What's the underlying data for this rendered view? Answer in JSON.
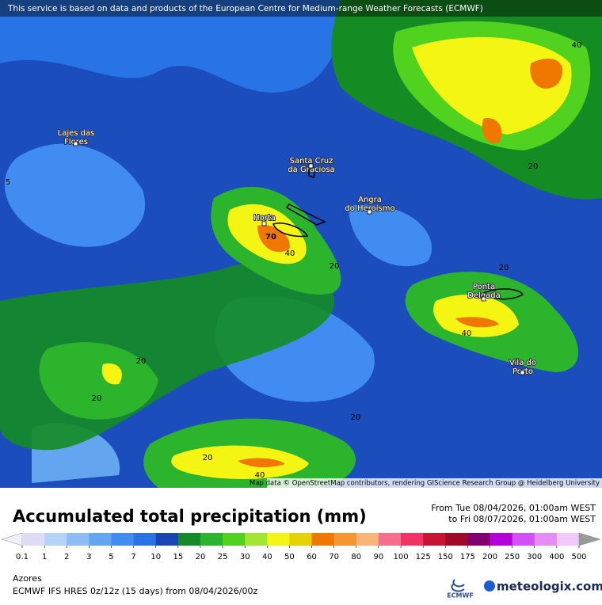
{
  "header": {
    "notice": "This service is based on data and products of the European Centre for Medium-range Weather Forecasts (ECMWF)"
  },
  "map": {
    "places": [
      {
        "lines": [
          "Lajes das",
          "Flores"
        ]
      },
      {
        "lines": [
          "Santa Cruz",
          "da Graciosa"
        ]
      },
      {
        "lines": [
          "Angra",
          "do Heroísmo"
        ]
      },
      {
        "lines": [
          "Horta"
        ]
      },
      {
        "lines": [
          "Ponta",
          "Delgada"
        ]
      },
      {
        "lines": [
          "Vila do",
          "Porto"
        ]
      }
    ],
    "contour_labels": [
      40,
      20,
      5,
      70,
      40,
      20,
      20,
      40,
      20,
      20,
      20,
      20,
      40
    ],
    "attribution": "Map data © OpenStreetMap contributors, rendering GIScience Research Group @ Heidelberg University"
  },
  "legend": {
    "title": "Accumulated total precipitation (mm)",
    "period": [
      "From Tue 08/04/2026, 01:00am WEST",
      "to Fri 08/07/2026, 01:00am WEST"
    ],
    "ticks": [
      0.1,
      1,
      2,
      3,
      5,
      7,
      10,
      15,
      20,
      25,
      30,
      40,
      50,
      60,
      70,
      80,
      90,
      100,
      125,
      150,
      175,
      200,
      250,
      300,
      400,
      500
    ],
    "colors": [
      "#f0f0fa",
      "#dcdcf5",
      "#b4d2fa",
      "#8cbef5",
      "#64a5f0",
      "#418cf0",
      "#2873e6",
      "#1946b4",
      "#148c23",
      "#2db42d",
      "#50d21e",
      "#a0e632",
      "#f5f514",
      "#e6d200",
      "#f07800",
      "#f59632",
      "#fab478",
      "#f56e8c",
      "#f03264",
      "#c81432",
      "#a00a28",
      "#82006e",
      "#b400dc",
      "#d250f5",
      "#e68cf5",
      "#f0c8fa",
      "#d2d2d2",
      "#9a9a9a"
    ]
  },
  "footer": {
    "region": "Azores",
    "model": "ECMWF IFS HRES 0z/12z (15 days) from 08/04/2026/00z",
    "logo_left": "ECMWF",
    "logo_right": "meteologix.com"
  }
}
